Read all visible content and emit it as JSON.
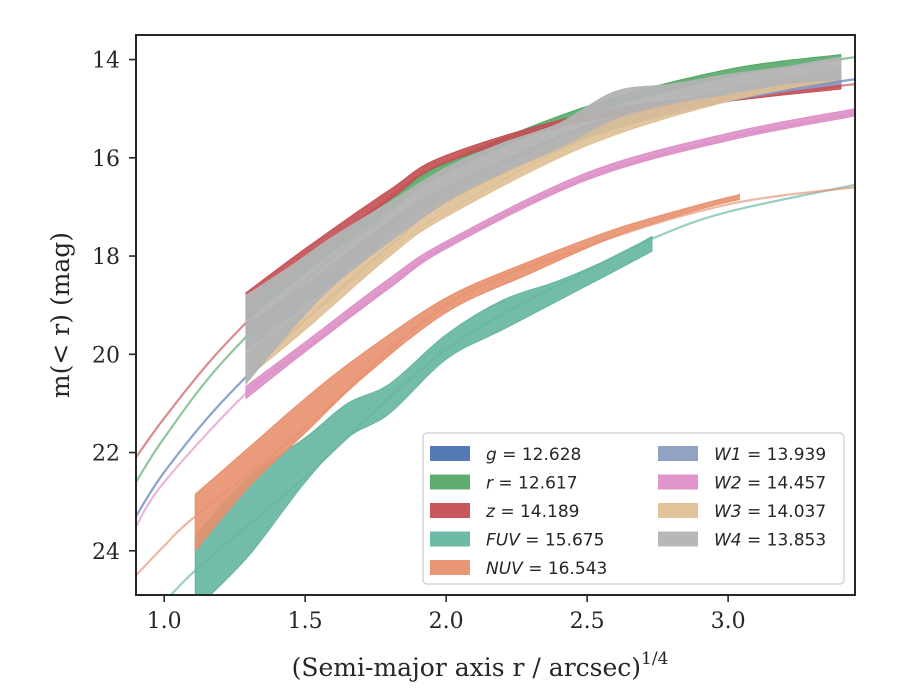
{
  "chart_data": {
    "type": "line",
    "xlabel": "(Semi-major axis r / arcsec)",
    "xlabel_power": "1/4",
    "ylabel": "m(< r) (mag)",
    "xlim": [
      0.9,
      3.45
    ],
    "ylim": [
      24.9,
      13.5
    ],
    "y_inverted": true,
    "xticks": [
      "1.0",
      "1.5",
      "2.0",
      "2.5",
      "3.0"
    ],
    "xtick_values": [
      1.0,
      1.5,
      2.0,
      2.5,
      3.0
    ],
    "yticks": [
      "14",
      "16",
      "18",
      "20",
      "22",
      "24"
    ],
    "ytick_values": [
      14,
      16,
      18,
      20,
      22,
      24
    ],
    "grid": false,
    "legend_position": "lower-right",
    "series": [
      {
        "name": "g = 12.628",
        "label_var": "g",
        "label_val": "12.628",
        "color": "#4c72b0",
        "line": [
          [
            0.9,
            23.3
          ],
          [
            1.0,
            22.4
          ],
          [
            1.2,
            21.0
          ],
          [
            1.5,
            19.3
          ],
          [
            1.8,
            17.8
          ],
          [
            2.0,
            16.9
          ],
          [
            2.5,
            15.5
          ],
          [
            3.0,
            14.8
          ],
          [
            3.45,
            14.4
          ]
        ],
        "band": [
          [
            1.29,
            19.7,
            19.4
          ],
          [
            1.5,
            18.9,
            18.6
          ],
          [
            1.8,
            17.6,
            17.3
          ],
          [
            2.0,
            16.85,
            16.6
          ],
          [
            2.5,
            15.55,
            15.35
          ],
          [
            3.0,
            14.85,
            14.7
          ],
          [
            3.4,
            14.5,
            14.35
          ]
        ]
      },
      {
        "name": "r = 12.617",
        "label_var": "r",
        "label_val": "12.617",
        "color": "#55a868",
        "line": [
          [
            0.9,
            22.6
          ],
          [
            1.0,
            21.7
          ],
          [
            1.2,
            20.2
          ],
          [
            1.5,
            18.5
          ],
          [
            1.8,
            17.1
          ],
          [
            2.0,
            16.3
          ],
          [
            2.5,
            15.1
          ],
          [
            3.0,
            14.35
          ],
          [
            3.45,
            13.95
          ]
        ],
        "band": [
          [
            1.29,
            19.3,
            19.0
          ],
          [
            1.5,
            18.35,
            18.1
          ],
          [
            1.8,
            17.05,
            16.85
          ],
          [
            2.0,
            16.3,
            16.1
          ],
          [
            2.5,
            15.1,
            14.95
          ],
          [
            3.0,
            14.35,
            14.2
          ],
          [
            3.4,
            14.0,
            13.9
          ]
        ]
      },
      {
        "name": "z = 14.189",
        "label_var": "z",
        "label_val": "14.189",
        "color": "#c44e52",
        "line": [
          [
            0.9,
            22.1
          ],
          [
            1.0,
            21.3
          ],
          [
            1.2,
            19.9
          ],
          [
            1.5,
            18.2
          ],
          [
            1.8,
            16.8
          ],
          [
            2.0,
            16.1
          ],
          [
            2.5,
            15.2
          ],
          [
            3.0,
            14.8
          ],
          [
            3.45,
            14.5
          ]
        ],
        "band": [
          [
            1.29,
            19.0,
            18.75
          ],
          [
            1.5,
            18.1,
            17.85
          ],
          [
            1.8,
            16.85,
            16.65
          ],
          [
            2.0,
            16.1,
            15.95
          ],
          [
            2.5,
            15.25,
            15.1
          ],
          [
            3.0,
            14.85,
            14.7
          ],
          [
            3.4,
            14.6,
            14.45
          ]
        ]
      },
      {
        "name": "FUV = 15.675",
        "label_var": "FUV",
        "label_val": "15.675",
        "color": "#64b5a0",
        "line": [
          [
            0.9,
            25.7
          ],
          [
            1.11,
            24.4
          ],
          [
            1.5,
            22.5
          ],
          [
            2.0,
            19.9
          ],
          [
            2.5,
            18.3
          ],
          [
            2.75,
            17.6
          ],
          [
            3.0,
            17.1
          ],
          [
            3.45,
            16.55
          ]
        ],
        "band": [
          [
            1.11,
            25.2,
            23.7
          ],
          [
            1.3,
            24.1,
            22.5
          ],
          [
            1.5,
            22.6,
            21.7
          ],
          [
            1.65,
            21.7,
            21.0
          ],
          [
            1.8,
            21.2,
            20.6
          ],
          [
            2.0,
            20.1,
            19.6
          ],
          [
            2.2,
            19.5,
            18.9
          ],
          [
            2.4,
            18.9,
            18.5
          ],
          [
            2.6,
            18.3,
            18.0
          ],
          [
            2.73,
            17.9,
            17.6
          ]
        ]
      },
      {
        "name": "NUV = 16.543",
        "label_var": "NUV",
        "label_val": "16.543",
        "color": "#e8906d",
        "line": [
          [
            0.9,
            24.5
          ],
          [
            1.0,
            23.9
          ],
          [
            1.11,
            23.3
          ],
          [
            1.5,
            21.5
          ],
          [
            2.0,
            19.0
          ],
          [
            2.5,
            17.8
          ],
          [
            3.0,
            16.95
          ],
          [
            3.45,
            16.6
          ]
        ],
        "band": [
          [
            1.11,
            24.0,
            22.85
          ],
          [
            1.3,
            22.7,
            21.9
          ],
          [
            1.5,
            21.6,
            20.9
          ],
          [
            1.7,
            20.5,
            20.0
          ],
          [
            2.0,
            19.15,
            18.85
          ],
          [
            2.3,
            18.35,
            18.1
          ],
          [
            2.6,
            17.6,
            17.45
          ],
          [
            2.9,
            17.05,
            16.95
          ],
          [
            3.04,
            16.85,
            16.75
          ]
        ]
      },
      {
        "name": "W1 = 13.939",
        "label_var": "W1",
        "label_val": "13.939",
        "color": "#8c9dc2",
        "line": [
          [
            1.29,
            19.8
          ],
          [
            1.5,
            18.9
          ],
          [
            1.8,
            17.6
          ],
          [
            2.0,
            16.8
          ],
          [
            2.5,
            15.5
          ],
          [
            3.0,
            14.8
          ],
          [
            3.4,
            14.4
          ]
        ],
        "band": [
          [
            1.29,
            19.9,
            19.5
          ],
          [
            1.5,
            19.0,
            18.6
          ],
          [
            1.8,
            17.7,
            17.35
          ],
          [
            2.0,
            16.9,
            16.6
          ],
          [
            2.5,
            15.6,
            15.4
          ],
          [
            3.0,
            14.85,
            14.7
          ],
          [
            3.4,
            14.5,
            14.3
          ]
        ]
      },
      {
        "name": "W2 = 14.457",
        "label_var": "W2",
        "label_val": "14.457",
        "color": "#dd8fc6",
        "line": [
          [
            0.9,
            23.5
          ],
          [
            1.0,
            22.6
          ],
          [
            1.29,
            20.8
          ],
          [
            1.5,
            19.9
          ],
          [
            1.8,
            18.6
          ],
          [
            2.0,
            17.8
          ],
          [
            2.5,
            16.4
          ],
          [
            3.0,
            15.6
          ],
          [
            3.45,
            15.1
          ]
        ],
        "band": [
          [
            1.29,
            20.9,
            20.65
          ],
          [
            1.5,
            19.95,
            19.75
          ],
          [
            1.8,
            18.65,
            18.45
          ],
          [
            2.0,
            17.85,
            17.7
          ],
          [
            2.5,
            16.45,
            16.3
          ],
          [
            3.0,
            15.65,
            15.5
          ],
          [
            3.45,
            15.15,
            15.0
          ]
        ]
      },
      {
        "name": "W3 = 14.037",
        "label_var": "W3",
        "label_val": "14.037",
        "color": "#dfc095",
        "line": [
          [
            1.29,
            20.3
          ],
          [
            1.5,
            19.3
          ],
          [
            1.8,
            17.9
          ],
          [
            2.0,
            17.1
          ],
          [
            2.5,
            15.6
          ],
          [
            3.0,
            14.75
          ],
          [
            3.4,
            14.3
          ]
        ],
        "band": [
          [
            1.29,
            20.5,
            20.0
          ],
          [
            1.5,
            19.5,
            19.1
          ],
          [
            1.8,
            18.0,
            17.6
          ],
          [
            2.0,
            17.2,
            16.8
          ],
          [
            2.5,
            15.75,
            15.4
          ],
          [
            3.0,
            14.85,
            14.6
          ],
          [
            3.4,
            14.4,
            14.2
          ]
        ]
      },
      {
        "name": "W4 = 13.853",
        "label_var": "W4",
        "label_val": "13.853",
        "color": "#b3b3b3",
        "line": [],
        "band": [
          [
            1.29,
            20.6,
            18.8
          ],
          [
            1.45,
            19.5,
            18.2
          ],
          [
            1.6,
            18.6,
            17.6
          ],
          [
            1.8,
            17.7,
            16.9
          ],
          [
            2.0,
            16.9,
            16.2
          ],
          [
            2.2,
            16.3,
            15.7
          ],
          [
            2.4,
            15.8,
            15.3
          ],
          [
            2.6,
            15.2,
            14.65
          ],
          [
            2.8,
            14.9,
            14.5
          ],
          [
            3.0,
            14.7,
            14.3
          ],
          [
            3.2,
            14.5,
            14.15
          ],
          [
            3.4,
            14.4,
            13.95
          ]
        ]
      }
    ]
  }
}
